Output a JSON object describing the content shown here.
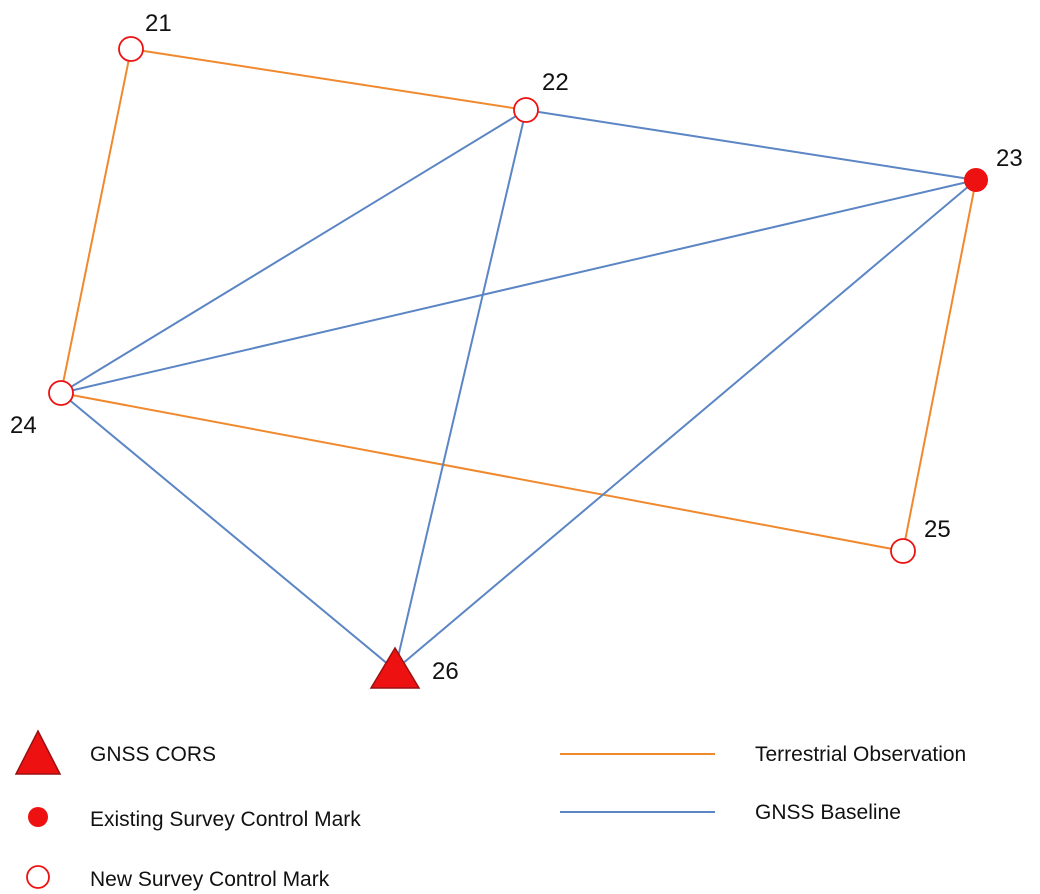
{
  "colors": {
    "terrestrial": "#F0892E",
    "gnss_baseline": "#5B85C4",
    "mark_red": "#EE1111",
    "triangle_stroke": "#9A1010"
  },
  "nodes": [
    {
      "id": "21",
      "label": "21",
      "symbol": "new-mark"
    },
    {
      "id": "22",
      "label": "22",
      "symbol": "new-mark"
    },
    {
      "id": "23",
      "label": "23",
      "symbol": "existing-mark"
    },
    {
      "id": "24",
      "label": "24",
      "symbol": "new-mark"
    },
    {
      "id": "25",
      "label": "25",
      "symbol": "new-mark"
    },
    {
      "id": "26",
      "label": "26",
      "symbol": "gnss-cors"
    }
  ],
  "edges": [
    {
      "from": "21",
      "to": "22",
      "kind": "terrestrial"
    },
    {
      "from": "21",
      "to": "24",
      "kind": "terrestrial"
    },
    {
      "from": "23",
      "to": "25",
      "kind": "terrestrial"
    },
    {
      "from": "24",
      "to": "25",
      "kind": "terrestrial"
    },
    {
      "from": "22",
      "to": "23",
      "kind": "gnss_baseline"
    },
    {
      "from": "22",
      "to": "24",
      "kind": "gnss_baseline"
    },
    {
      "from": "22",
      "to": "26",
      "kind": "gnss_baseline"
    },
    {
      "from": "23",
      "to": "24",
      "kind": "gnss_baseline"
    },
    {
      "from": "23",
      "to": "26",
      "kind": "gnss_baseline"
    },
    {
      "from": "24",
      "to": "26",
      "kind": "gnss_baseline"
    }
  ],
  "legend": {
    "gnss_cors": "GNSS CORS",
    "existing_mark": "Existing Survey Control Mark",
    "new_mark": "New Survey Control Mark",
    "terrestrial": "Terrestrial Observation",
    "gnss_baseline": "GNSS Baseline"
  }
}
